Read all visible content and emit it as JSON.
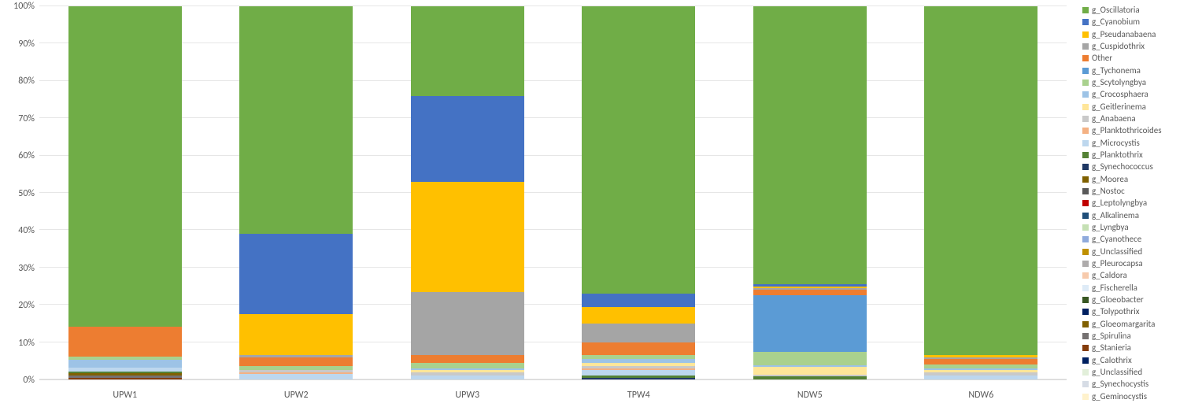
{
  "chart": {
    "type": "stacked-bar-100",
    "background_color": "#ffffff",
    "grid_color": "#e6e6e6",
    "axis_color": "#d9d9d9",
    "label_color": "#595959",
    "label_fontsize": 12,
    "legend_fontsize": 11,
    "y": {
      "min": 0,
      "max": 100,
      "ticks": [
        0,
        10,
        20,
        30,
        40,
        50,
        60,
        70,
        80,
        90,
        100
      ],
      "tick_labels": [
        "0%",
        "10%",
        "20%",
        "30%",
        "40%",
        "50%",
        "60%",
        "70%",
        "80%",
        "90%",
        "100%"
      ]
    },
    "categories": [
      "UPW1",
      "UPW2",
      "UPW3",
      "TPW4",
      "NDW5",
      "NDW6"
    ],
    "series": [
      {
        "name": "g_Oscillatoria",
        "color": "#70ad47"
      },
      {
        "name": "g_Cyanobium",
        "color": "#4472c4"
      },
      {
        "name": "g_Pseudanabaena",
        "color": "#ffc000"
      },
      {
        "name": "g_Cuspidothrix",
        "color": "#a5a5a5"
      },
      {
        "name": "Other",
        "color": "#ed7d31"
      },
      {
        "name": "g_Tychonema",
        "color": "#5b9bd5"
      },
      {
        "name": "g_Scytolyngbya",
        "color": "#a9d18e"
      },
      {
        "name": "g_Crocosphaera",
        "color": "#9dc3e6"
      },
      {
        "name": "g_Geitlerinema",
        "color": "#ffe699"
      },
      {
        "name": "g_Anabaena",
        "color": "#c9c9c9"
      },
      {
        "name": "g_Planktothricoides",
        "color": "#f4b183"
      },
      {
        "name": "g_Microcystis",
        "color": "#bdd7ee"
      },
      {
        "name": "g_Planktothrix",
        "color": "#548235"
      },
      {
        "name": "g_Synechococcus",
        "color": "#203864"
      },
      {
        "name": "g_Moorea",
        "color": "#7f6000"
      },
      {
        "name": "g_Nostoc",
        "color": "#595959"
      },
      {
        "name": "g_Leptolyngbya",
        "color": "#c00000"
      },
      {
        "name": "g_Alkalinema",
        "color": "#1f4e79"
      },
      {
        "name": "g_Lyngbya",
        "color": "#c5e0b4"
      },
      {
        "name": "g_Cyanothece",
        "color": "#8faadc"
      },
      {
        "name": "g_Unclassified",
        "color": "#bf9000"
      },
      {
        "name": "g_Pleurocapsa",
        "color": "#aeabab"
      },
      {
        "name": "g_Caldora",
        "color": "#f7caac"
      },
      {
        "name": "g_Fischerella",
        "color": "#deebf7"
      },
      {
        "name": "g_Gloeobacter",
        "color": "#385723"
      },
      {
        "name": "g_Tolypothrix",
        "color": "#002060"
      },
      {
        "name": "g_Gloeomargarita",
        "color": "#806000"
      },
      {
        "name": "g_Spirulina",
        "color": "#757171"
      },
      {
        "name": "g_Stanieria",
        "color": "#843c0b"
      },
      {
        "name": "g_Calothrix",
        "color": "#002060"
      },
      {
        "name": "g_Unclassified",
        "color": "#e2efda"
      },
      {
        "name": "g_Synechocystis",
        "color": "#d6dce5"
      },
      {
        "name": "g_Geminocystis",
        "color": "#fff2cc"
      }
    ],
    "data": {
      "UPW1": {
        "g_Stanieria": 0.5,
        "g_Spirulina": 0.5,
        "g_Gloeomargarita": 0.8,
        "g_Planktothrix": 0.4,
        "g_Microcystis": 1.0,
        "g_Crocosphaera": 2.0,
        "g_Scytolyngbya": 1.0,
        "Other": 8.0,
        "g_Oscillatoria": 85.8
      },
      "UPW2": {
        "g_Microcystis": 1.5,
        "g_Planktothricoides": 0.5,
        "g_Anabaena": 0.5,
        "g_Scytolyngbya": 1.0,
        "Other": 2.5,
        "g_Cuspidothrix": 0.5,
        "g_Pseudanabaena": 11.0,
        "g_Cyanobium": 21.5,
        "g_Oscillatoria": 61.0
      },
      "UPW3": {
        "g_Microcystis": 1.0,
        "g_Anabaena": 1.0,
        "g_Geitlerinema": 0.5,
        "g_Crocosphaera": 0.5,
        "g_Scytolyngbya": 1.5,
        "Other": 2.0,
        "g_Cuspidothrix": 17.0,
        "g_Pseudanabaena": 29.5,
        "g_Cyanobium": 23.0,
        "g_Oscillatoria": 24.0
      },
      "TPW4": {
        "g_Synechococcus": 0.5,
        "g_Planktothrix": 0.5,
        "g_Microcystis": 1.5,
        "g_Planktothricoides": 0.5,
        "g_Anabaena": 0.5,
        "g_Geitlerinema": 1.0,
        "g_Crocosphaera": 1.0,
        "g_Scytolyngbya": 1.0,
        "Other": 3.5,
        "g_Cuspidothrix": 5.0,
        "g_Pseudanabaena": 4.5,
        "g_Cyanobium": 3.5,
        "g_Oscillatoria": 77.0
      },
      "NDW5": {
        "g_Planktothrix": 0.8,
        "g_Anabaena": 0.5,
        "g_Geitlerinema": 2.0,
        "g_Crocosphaera": 0.5,
        "g_Scytolyngbya": 3.5,
        "g_Tychonema": 15.2,
        "Other": 1.5,
        "g_Cuspidothrix": 0.5,
        "g_Pseudanabaena": 0.5,
        "g_Cyanobium": 0.5,
        "g_Oscillatoria": 74.5
      },
      "NDW6": {
        "g_Microcystis": 1.0,
        "g_Anabaena": 1.0,
        "g_Geitlerinema": 0.5,
        "g_Crocosphaera": 0.5,
        "g_Scytolyngbya": 1.0,
        "Other": 1.5,
        "g_Cuspidothrix": 0.5,
        "g_Pseudanabaena": 0.5,
        "g_Oscillatoria": 93.5
      }
    }
  }
}
